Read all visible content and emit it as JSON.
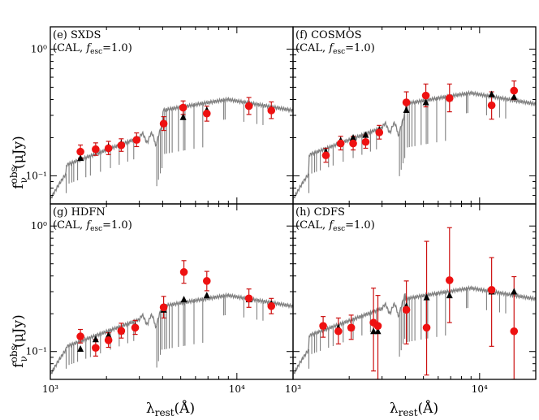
{
  "chart_data": [
    {
      "type": "scatter",
      "panel_id": "e",
      "title": "(e) SXDS",
      "subtitle": "(CAL, f_esc=1.0)",
      "xlabel": "λ_rest(Å)",
      "ylabel": "f_ν^obs (μJy)",
      "xscale": "log",
      "yscale": "log",
      "xlim": [
        1000,
        20000
      ],
      "ylim": [
        0.06,
        1.5
      ],
      "series": [
        {
          "name": "observed",
          "marker": "red-circle",
          "x": [
            1450,
            1750,
            2050,
            2400,
            2900,
            4050,
            5150,
            6900,
            11600,
            15300
          ],
          "y": [
            0.155,
            0.162,
            0.165,
            0.174,
            0.192,
            0.258,
            0.345,
            0.31,
            0.355,
            0.328
          ],
          "yerr_lo": [
            0.017,
            0.017,
            0.018,
            0.018,
            0.022,
            0.03,
            0.04,
            0.04,
            0.05,
            0.045
          ],
          "yerr_hi": [
            0.02,
            0.02,
            0.022,
            0.022,
            0.026,
            0.035,
            0.045,
            0.045,
            0.06,
            0.055
          ]
        },
        {
          "name": "model",
          "marker": "black-triangle",
          "x": [
            1450,
            1750,
            2050,
            2400,
            2900,
            4050,
            5150,
            6900,
            11600,
            15300
          ],
          "y": [
            0.138,
            0.163,
            0.17,
            0.18,
            0.195,
            0.262,
            0.29,
            0.33,
            0.36,
            0.335
          ]
        }
      ],
      "sed_plateau": [
        0.2,
        0.4
      ],
      "yticks": [
        {
          "value": 0.1,
          "label": "10⁻¹"
        },
        {
          "value": 1,
          "label": "10⁰"
        }
      ],
      "xticks": []
    },
    {
      "type": "scatter",
      "panel_id": "f",
      "title": "(f) COSMOS",
      "subtitle": "(CAL, f_esc=1.0)",
      "xlabel": "λ_rest(Å)",
      "ylabel": "f_ν^obs (μJy)",
      "xscale": "log",
      "yscale": "log",
      "xlim": [
        1000,
        20000
      ],
      "ylim": [
        0.06,
        1.5
      ],
      "series": [
        {
          "name": "observed",
          "marker": "red-circle",
          "x": [
            1500,
            1800,
            2100,
            2450,
            2900,
            4050,
            5150,
            6900,
            11600,
            15300
          ],
          "y": [
            0.145,
            0.18,
            0.18,
            0.185,
            0.22,
            0.38,
            0.43,
            0.41,
            0.36,
            0.47
          ],
          "yerr_lo": [
            0.017,
            0.02,
            0.02,
            0.02,
            0.025,
            0.06,
            0.08,
            0.09,
            0.08,
            0.07
          ],
          "yerr_hi": [
            0.02,
            0.025,
            0.025,
            0.025,
            0.03,
            0.08,
            0.1,
            0.12,
            0.1,
            0.09
          ]
        },
        {
          "name": "model",
          "marker": "black-triangle",
          "x": [
            1500,
            1800,
            2100,
            2450,
            2900,
            4050,
            5150,
            6900,
            11600,
            15300
          ],
          "y": [
            0.155,
            0.19,
            0.2,
            0.21,
            0.23,
            0.33,
            0.38,
            0.41,
            0.44,
            0.42
          ]
        }
      ],
      "sed_plateau": [
        0.24,
        0.45
      ],
      "yticks": [],
      "xticks": []
    },
    {
      "type": "scatter",
      "panel_id": "g",
      "title": "(g) HDFN",
      "subtitle": "(CAL, f_esc=1.0)",
      "xlabel": "λ_rest(Å)",
      "ylabel": "f_ν^obs (μJy)",
      "xscale": "log",
      "yscale": "log",
      "xlim": [
        1000,
        20000
      ],
      "ylim": [
        0.06,
        1.5
      ],
      "series": [
        {
          "name": "observed",
          "marker": "red-circle",
          "x": [
            1450,
            1750,
            2050,
            2400,
            2850,
            4050,
            5200,
            6900,
            11600,
            15300
          ],
          "y": [
            0.132,
            0.107,
            0.123,
            0.146,
            0.155,
            0.225,
            0.43,
            0.365,
            0.265,
            0.23
          ],
          "yerr_lo": [
            0.015,
            0.015,
            0.015,
            0.018,
            0.018,
            0.04,
            0.08,
            0.06,
            0.04,
            0.03
          ],
          "yerr_hi": [
            0.018,
            0.018,
            0.018,
            0.022,
            0.022,
            0.05,
            0.1,
            0.07,
            0.05,
            0.035
          ]
        },
        {
          "name": "model",
          "marker": "black-triangle",
          "x": [
            1450,
            1750,
            2050,
            2400,
            2850,
            4050,
            5200,
            6900,
            11600,
            15300
          ],
          "y": [
            0.105,
            0.125,
            0.135,
            0.145,
            0.16,
            0.215,
            0.26,
            0.28,
            0.26,
            0.24
          ]
        }
      ],
      "sed_plateau": [
        0.18,
        0.28
      ],
      "yticks": [
        {
          "value": 0.1,
          "label": "10⁻¹"
        },
        {
          "value": 1,
          "label": "10⁰"
        }
      ],
      "xticks": [
        {
          "value": 1000,
          "label": "10³"
        },
        {
          "value": 10000,
          "label": "10⁴"
        }
      ]
    },
    {
      "type": "scatter",
      "panel_id": "h",
      "title": "(h) CDFS",
      "subtitle": "(CAL, f_esc=1.0)",
      "xlabel": "λ_rest(Å)",
      "ylabel": "f_ν^obs (μJy)",
      "xscale": "log",
      "yscale": "log",
      "xlim": [
        1000,
        20000
      ],
      "ylim": [
        0.06,
        1.5
      ],
      "series": [
        {
          "name": "observed",
          "marker": "red-circle",
          "x": [
            1450,
            1750,
            2050,
            2700,
            2850,
            4050,
            5200,
            6900,
            11600,
            15300
          ],
          "y": [
            0.16,
            0.145,
            0.155,
            0.17,
            0.16,
            0.215,
            0.155,
            0.37,
            0.31,
            0.145
          ],
          "yerr_lo": [
            0.03,
            0.03,
            0.03,
            0.1,
            0.1,
            0.1,
            0.09,
            0.2,
            0.2,
            0.09
          ],
          "yerr_hi": [
            0.03,
            0.04,
            0.04,
            0.15,
            0.12,
            0.15,
            0.6,
            0.6,
            0.25,
            0.25
          ]
        },
        {
          "name": "model",
          "marker": "black-triangle",
          "x": [
            1450,
            1750,
            2050,
            2700,
            2850,
            4050,
            5200,
            6900,
            11600,
            15300
          ],
          "y": [
            0.16,
            0.155,
            0.155,
            0.145,
            0.145,
            0.23,
            0.27,
            0.28,
            0.3,
            0.3
          ]
        }
      ],
      "sed_plateau": [
        0.22,
        0.32
      ],
      "yticks": [],
      "xticks": [
        {
          "value": 1000,
          "label": "10³"
        },
        {
          "value": 10000,
          "label": "10⁴"
        }
      ]
    }
  ],
  "axis_titles": {
    "y_name": "f",
    "y_sub": "ν",
    "y_sup": "obs",
    "y_unit": "(μJy)",
    "x_name": "λ",
    "x_sub": "rest",
    "x_unit": "(Å)"
  },
  "colors": {
    "observed": "#ee1111",
    "errorbar": "#cc1111",
    "model": "#000000",
    "sed": "#808080"
  }
}
